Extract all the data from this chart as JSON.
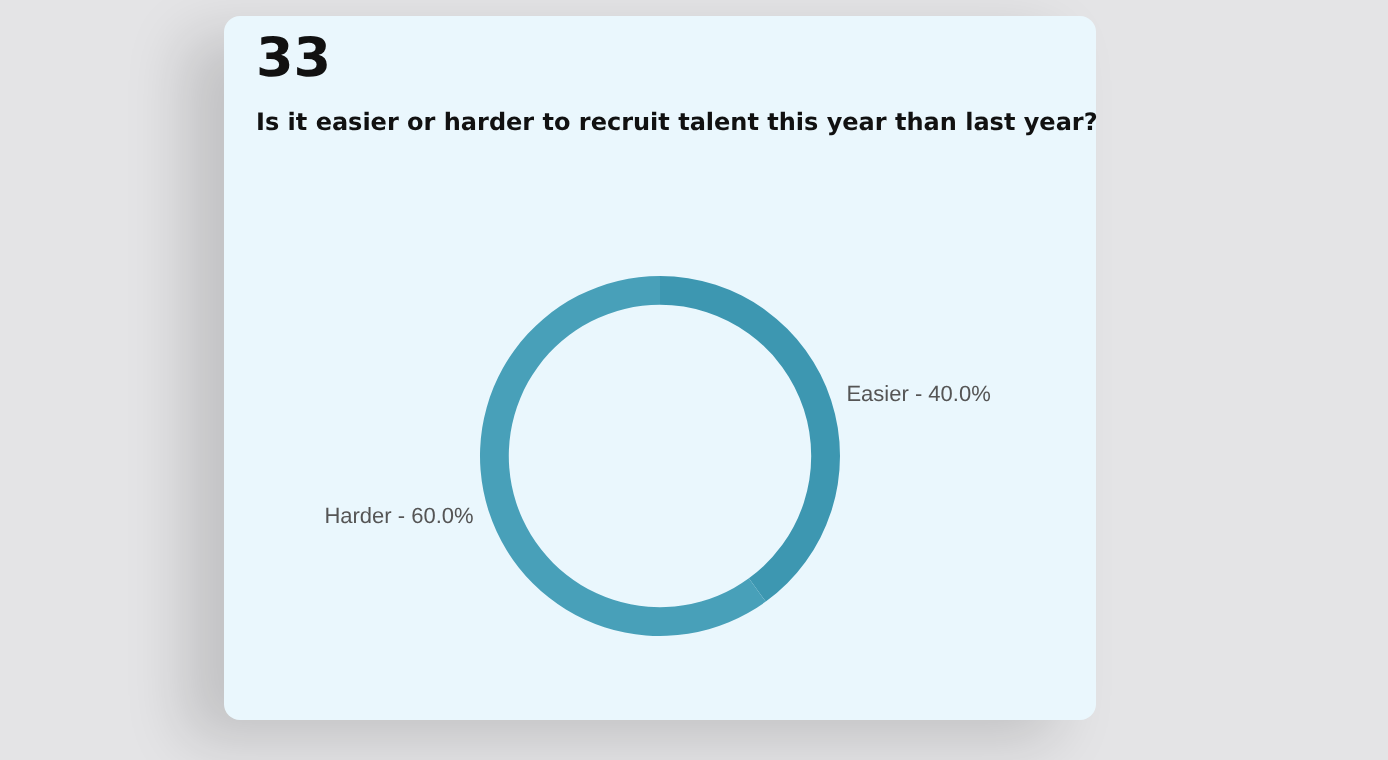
{
  "chart_data": {
    "type": "donut",
    "title": "Is it easier or harder to recruit talent this year than last year?",
    "annotations": [
      "33"
    ],
    "categories": [
      "Easier",
      "Harder"
    ],
    "values": [
      40.0,
      60.0
    ],
    "colors": [
      "#3d97b1",
      "#48a0b9"
    ],
    "value_labels": [
      "40.0%",
      "60.0%"
    ],
    "legend": false
  }
}
